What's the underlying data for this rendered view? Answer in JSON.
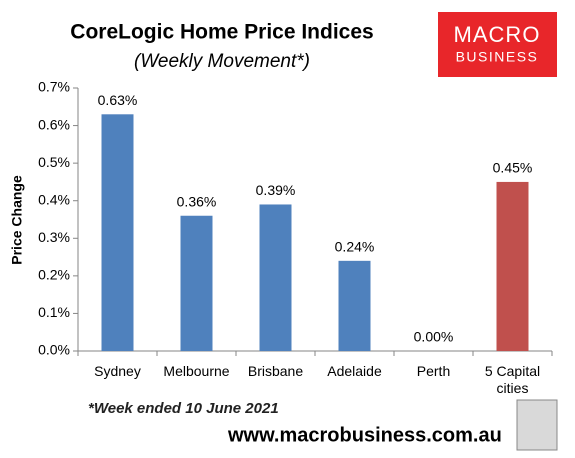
{
  "chart_data": {
    "type": "bar",
    "title": "CoreLogic Home Price Indices",
    "subtitle": "(Weekly Movement*)",
    "y_label": "Price Change",
    "categories": [
      "Sydney",
      "Melbourne",
      "Brisbane",
      "Adelaide",
      "Perth",
      "5 Capital cities"
    ],
    "values": [
      0.63,
      0.36,
      0.39,
      0.24,
      0,
      0.45
    ],
    "value_labels": [
      "0.63%",
      "0.36%",
      "0.39%",
      "0.24%",
      "0.00%",
      "0.45%"
    ],
    "colors": [
      "#4f81bd",
      "#4f81bd",
      "#4f81bd",
      "#4f81bd",
      "#4f81bd",
      "#c0504d"
    ],
    "ylim": [
      0,
      0.7
    ],
    "yticks": [
      {
        "value": 0,
        "label": "0.0%"
      },
      {
        "value": 0.1,
        "label": "0.1%"
      },
      {
        "value": 0.2,
        "label": "0.2%"
      },
      {
        "value": 0.3,
        "label": "0.3%"
      },
      {
        "value": 0.4,
        "label": "0.4%"
      },
      {
        "value": 0.5,
        "label": "0.5%"
      },
      {
        "value": 0.6,
        "label": "0.6%"
      },
      {
        "value": 0.7,
        "label": "0.7%"
      }
    ],
    "grid": false,
    "note": "*Week ended 10 June 2021",
    "source": "www.macrobusiness.com.au"
  },
  "logo": {
    "line1": "MACRO",
    "line2": "BUSINESS"
  }
}
